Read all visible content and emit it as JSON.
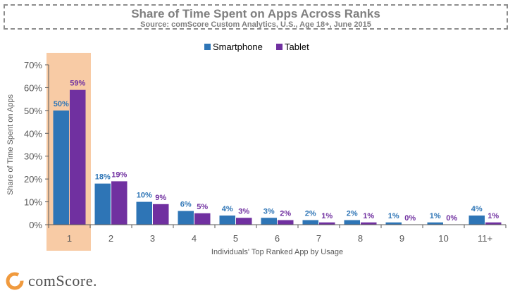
{
  "chart_data": {
    "type": "bar",
    "title": "Share of Time Spent on Apps Across Ranks",
    "subtitle": "Source: comScore Custom Analytics, U.S., Age 18+, June 2015",
    "xlabel": "Individuals' Top Ranked App by Usage",
    "ylabel": "Share of Time Spent on Apps",
    "categories": [
      "1",
      "2",
      "3",
      "4",
      "5",
      "6",
      "7",
      "8",
      "9",
      "10",
      "11+"
    ],
    "series": [
      {
        "name": "Smartphone",
        "color": "#2e75b6",
        "values": [
          50,
          18,
          10,
          6,
          4,
          3,
          2,
          2,
          1,
          1,
          4
        ],
        "labels": [
          "50%",
          "18%",
          "10%",
          "6%",
          "4%",
          "3%",
          "2%",
          "2%",
          "1%",
          "1%",
          "4%"
        ]
      },
      {
        "name": "Tablet",
        "color": "#7030a0",
        "values": [
          59,
          19,
          9,
          5,
          3,
          2,
          1,
          1,
          0,
          0,
          1
        ],
        "labels": [
          "59%",
          "19%",
          "9%",
          "5%",
          "3%",
          "2%",
          "1%",
          "1%",
          "0%",
          "0%",
          "1%"
        ]
      }
    ],
    "ylim": [
      0,
      70
    ],
    "yticks": [
      "0%",
      "10%",
      "20%",
      "30%",
      "40%",
      "50%",
      "60%",
      "70%"
    ],
    "highlight_category": "1",
    "highlight_color": "#f8cba5",
    "legend_position": "top-center",
    "grid": false
  },
  "brand": {
    "name": "comScore.",
    "logo_color": "#f09a3e"
  }
}
